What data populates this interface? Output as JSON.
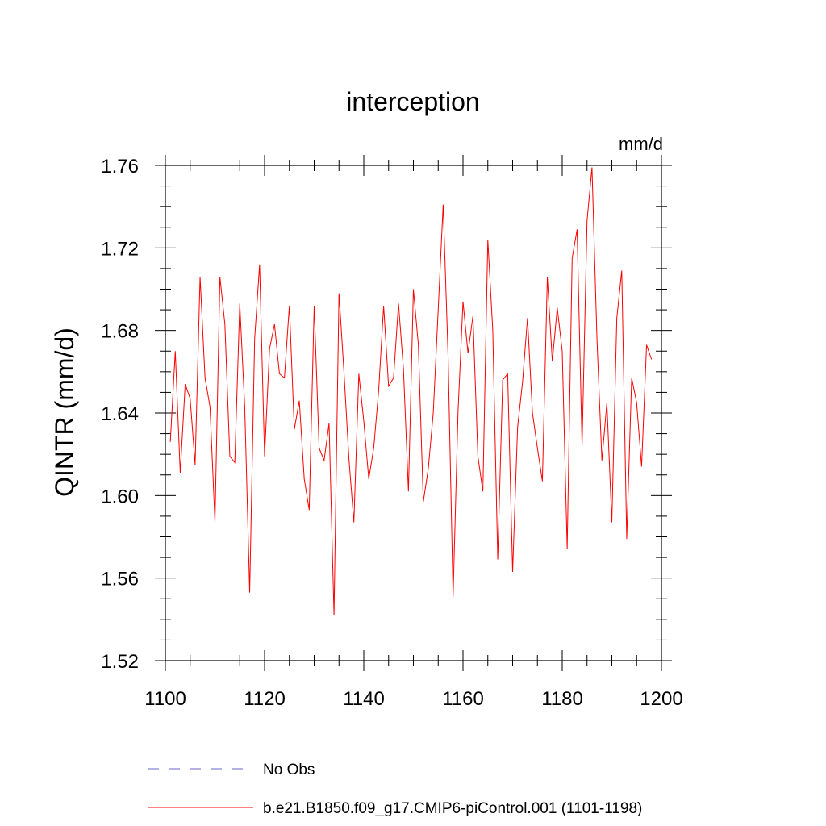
{
  "chart_data": {
    "type": "line",
    "title": "interception",
    "units": "mm/d",
    "xlabel": "",
    "ylabel": "QINTR  (mm/d)",
    "xlim": [
      1100,
      1200
    ],
    "ylim": [
      1.52,
      1.76
    ],
    "xticks": [
      1100,
      1120,
      1140,
      1160,
      1180,
      1200
    ],
    "xtick_labels": [
      "1100",
      "1120",
      "1140",
      "1160",
      "1180",
      "1200"
    ],
    "yticks": [
      1.52,
      1.56,
      1.6,
      1.64,
      1.68,
      1.72,
      1.76
    ],
    "ytick_labels": [
      "1.52",
      "1.56",
      "1.60",
      "1.64",
      "1.68",
      "1.72",
      "1.76"
    ],
    "grid": false,
    "legend_position": "bottom",
    "legend": [
      {
        "label": "No Obs",
        "color": "#6666cc",
        "style": "dashed"
      },
      {
        "label": "b.e21.B1850.f09_g17.CMIP6-piControl.001 (1101-1198)",
        "color": "#ff0000",
        "style": "solid"
      }
    ],
    "series": [
      {
        "name": "b.e21.B1850.f09_g17.CMIP6-piControl.001 (1101-1198)",
        "color": "#ff0000",
        "x": [
          1101,
          1102,
          1103,
          1104,
          1105,
          1106,
          1107,
          1108,
          1109,
          1110,
          1111,
          1112,
          1113,
          1114,
          1115,
          1116,
          1117,
          1118,
          1119,
          1120,
          1121,
          1122,
          1123,
          1124,
          1125,
          1126,
          1127,
          1128,
          1129,
          1130,
          1131,
          1132,
          1133,
          1134,
          1135,
          1136,
          1137,
          1138,
          1139,
          1140,
          1141,
          1142,
          1143,
          1144,
          1145,
          1146,
          1147,
          1148,
          1149,
          1150,
          1151,
          1152,
          1153,
          1154,
          1155,
          1156,
          1157,
          1158,
          1159,
          1160,
          1161,
          1162,
          1163,
          1164,
          1165,
          1166,
          1167,
          1168,
          1169,
          1170,
          1171,
          1172,
          1173,
          1174,
          1175,
          1176,
          1177,
          1178,
          1179,
          1180,
          1181,
          1182,
          1183,
          1184,
          1185,
          1186,
          1187,
          1188,
          1189,
          1190,
          1191,
          1192,
          1193,
          1194,
          1195,
          1196,
          1197,
          1198
        ],
        "values": [
          1.626,
          1.67,
          1.611,
          1.654,
          1.647,
          1.615,
          1.706,
          1.657,
          1.643,
          1.587,
          1.706,
          1.683,
          1.619,
          1.616,
          1.693,
          1.643,
          1.553,
          1.676,
          1.712,
          1.619,
          1.671,
          1.683,
          1.659,
          1.657,
          1.692,
          1.632,
          1.646,
          1.608,
          1.593,
          1.692,
          1.623,
          1.617,
          1.635,
          1.542,
          1.698,
          1.66,
          1.618,
          1.587,
          1.659,
          1.636,
          1.608,
          1.623,
          1.651,
          1.692,
          1.653,
          1.657,
          1.693,
          1.661,
          1.602,
          1.7,
          1.673,
          1.597,
          1.613,
          1.64,
          1.69,
          1.741,
          1.667,
          1.551,
          1.641,
          1.694,
          1.669,
          1.687,
          1.619,
          1.602,
          1.724,
          1.68,
          1.569,
          1.656,
          1.659,
          1.563,
          1.633,
          1.655,
          1.686,
          1.64,
          1.623,
          1.607,
          1.706,
          1.665,
          1.691,
          1.67,
          1.574,
          1.715,
          1.729,
          1.624,
          1.733,
          1.759,
          1.676,
          1.617,
          1.645,
          1.587,
          1.686,
          1.709,
          1.579,
          1.657,
          1.645,
          1.614,
          1.673,
          1.666
        ]
      }
    ]
  }
}
